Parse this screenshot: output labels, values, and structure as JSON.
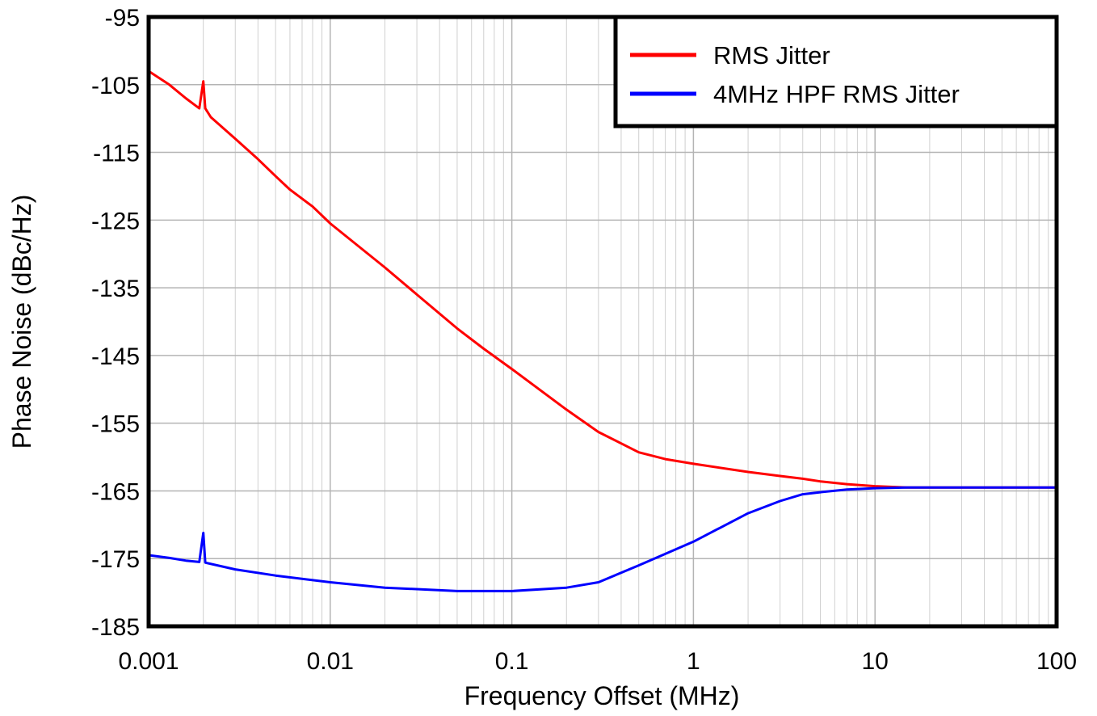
{
  "chart_data": {
    "type": "line",
    "title": "",
    "xlabel": "Frequency Offset (MHz)",
    "ylabel": "Phase Noise (dBc/Hz)",
    "x_scale": "log",
    "xlim": [
      0.001,
      100
    ],
    "ylim": [
      -185,
      -95
    ],
    "x_ticks": [
      0.001,
      0.01,
      0.1,
      1,
      10,
      100
    ],
    "x_tick_labels": [
      "0.001",
      "0.01",
      "0.1",
      "1",
      "10",
      "100"
    ],
    "y_ticks": [
      -95,
      -105,
      -115,
      -125,
      -135,
      -145,
      -155,
      -165,
      -175,
      -185
    ],
    "y_tick_labels": [
      "-95",
      "-105",
      "-115",
      "-125",
      "-135",
      "-145",
      "-155",
      "-165",
      "-175",
      "-185"
    ],
    "grid": true,
    "legend_position": "top-right",
    "series": [
      {
        "name": "RMS Jitter",
        "color": "#ff0000",
        "points": [
          [
            0.001,
            -103
          ],
          [
            0.0013,
            -105
          ],
          [
            0.0016,
            -107
          ],
          [
            0.0019,
            -108.5
          ],
          [
            0.002,
            -104.5
          ],
          [
            0.00205,
            -108.5
          ],
          [
            0.0022,
            -109.8
          ],
          [
            0.003,
            -113
          ],
          [
            0.004,
            -116
          ],
          [
            0.005,
            -118.5
          ],
          [
            0.006,
            -120.5
          ],
          [
            0.008,
            -123
          ],
          [
            0.01,
            -125.5
          ],
          [
            0.02,
            -132
          ],
          [
            0.03,
            -136
          ],
          [
            0.05,
            -141
          ],
          [
            0.07,
            -144
          ],
          [
            0.1,
            -147
          ],
          [
            0.2,
            -153
          ],
          [
            0.3,
            -156.3
          ],
          [
            0.5,
            -159.3
          ],
          [
            0.7,
            -160.3
          ],
          [
            1,
            -161
          ],
          [
            2,
            -162.2
          ],
          [
            3,
            -162.8
          ],
          [
            4,
            -163.2
          ],
          [
            5,
            -163.6
          ],
          [
            7,
            -164
          ],
          [
            10,
            -164.3
          ],
          [
            15,
            -164.5
          ],
          [
            20,
            -164.5
          ],
          [
            30,
            -164.5
          ],
          [
            100,
            -164.5
          ]
        ]
      },
      {
        "name": "4MHz HPF RMS Jitter",
        "color": "#0000ff",
        "points": [
          [
            0.001,
            -174.5
          ],
          [
            0.0013,
            -174.9
          ],
          [
            0.0016,
            -175.3
          ],
          [
            0.0019,
            -175.5
          ],
          [
            0.002,
            -171.2
          ],
          [
            0.00205,
            -175.6
          ],
          [
            0.003,
            -176.6
          ],
          [
            0.005,
            -177.5
          ],
          [
            0.01,
            -178.5
          ],
          [
            0.02,
            -179.3
          ],
          [
            0.05,
            -179.8
          ],
          [
            0.1,
            -179.8
          ],
          [
            0.2,
            -179.3
          ],
          [
            0.3,
            -178.5
          ],
          [
            0.5,
            -176
          ],
          [
            0.7,
            -174.3
          ],
          [
            1,
            -172.5
          ],
          [
            2,
            -168.3
          ],
          [
            3,
            -166.5
          ],
          [
            4,
            -165.5
          ],
          [
            5,
            -165.2
          ],
          [
            7,
            -164.8
          ],
          [
            10,
            -164.6
          ],
          [
            15,
            -164.5
          ],
          [
            20,
            -164.5
          ],
          [
            30,
            -164.5
          ],
          [
            100,
            -164.5
          ]
        ]
      }
    ]
  }
}
